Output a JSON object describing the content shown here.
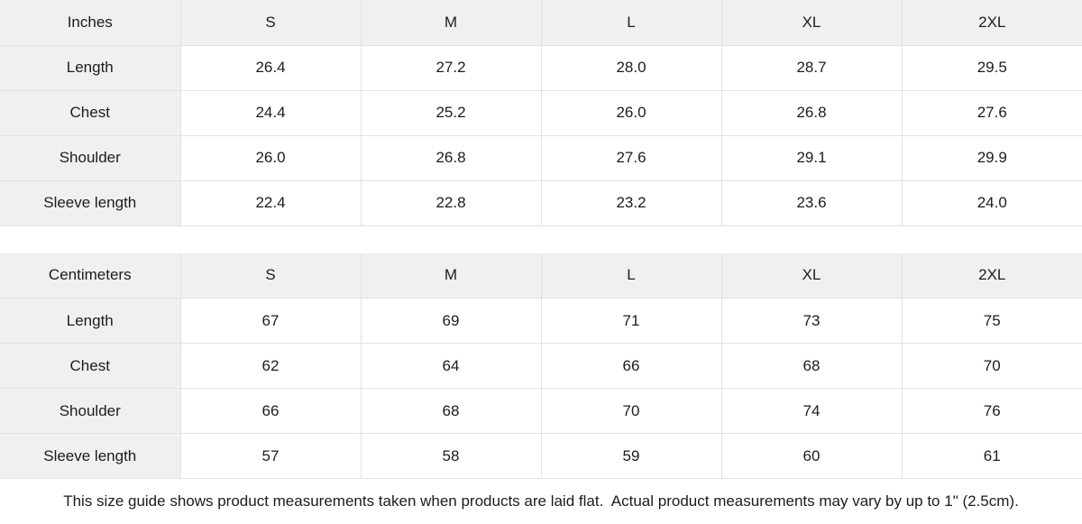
{
  "colors": {
    "header_bg": "#f0f0f0",
    "cell_bg": "#ffffff",
    "border": "#e2e2e2",
    "text": "#1c1c1c"
  },
  "tables": [
    {
      "unit_label": "Inches",
      "size_headers": [
        "S",
        "M",
        "L",
        "XL",
        "2XL"
      ],
      "rows": [
        {
          "label": "Length",
          "values": [
            "26.4",
            "27.2",
            "28.0",
            "28.7",
            "29.5"
          ]
        },
        {
          "label": "Chest",
          "values": [
            "24.4",
            "25.2",
            "26.0",
            "26.8",
            "27.6"
          ]
        },
        {
          "label": "Shoulder",
          "values": [
            "26.0",
            "26.8",
            "27.6",
            "29.1",
            "29.9"
          ]
        },
        {
          "label": "Sleeve length",
          "values": [
            "22.4",
            "22.8",
            "23.2",
            "23.6",
            "24.0"
          ]
        }
      ]
    },
    {
      "unit_label": "Centimeters",
      "size_headers": [
        "S",
        "M",
        "L",
        "XL",
        "2XL"
      ],
      "rows": [
        {
          "label": "Length",
          "values": [
            "67",
            "69",
            "71",
            "73",
            "75"
          ]
        },
        {
          "label": "Chest",
          "values": [
            "62",
            "64",
            "66",
            "68",
            "70"
          ]
        },
        {
          "label": "Shoulder",
          "values": [
            "66",
            "68",
            "70",
            "74",
            "76"
          ]
        },
        {
          "label": "Sleeve length",
          "values": [
            "57",
            "58",
            "59",
            "60",
            "61"
          ]
        }
      ]
    }
  ],
  "footer": {
    "note": "This size guide shows product measurements taken when products are laid flat.  Actual product measurements may vary by up to 1\" (2.5cm)."
  },
  "chart_data": [
    {
      "type": "table",
      "title": "Inches",
      "columns": [
        "Inches",
        "S",
        "M",
        "L",
        "XL",
        "2XL"
      ],
      "rows": [
        [
          "Length",
          26.4,
          27.2,
          28.0,
          28.7,
          29.5
        ],
        [
          "Chest",
          24.4,
          25.2,
          26.0,
          26.8,
          27.6
        ],
        [
          "Shoulder",
          26.0,
          26.8,
          27.6,
          29.1,
          29.9
        ],
        [
          "Sleeve length",
          22.4,
          22.8,
          23.2,
          23.6,
          24.0
        ]
      ]
    },
    {
      "type": "table",
      "title": "Centimeters",
      "columns": [
        "Centimeters",
        "S",
        "M",
        "L",
        "XL",
        "2XL"
      ],
      "rows": [
        [
          "Length",
          67,
          69,
          71,
          73,
          75
        ],
        [
          "Chest",
          62,
          64,
          66,
          68,
          70
        ],
        [
          "Shoulder",
          66,
          68,
          70,
          74,
          76
        ],
        [
          "Sleeve length",
          57,
          58,
          59,
          60,
          61
        ]
      ]
    }
  ]
}
